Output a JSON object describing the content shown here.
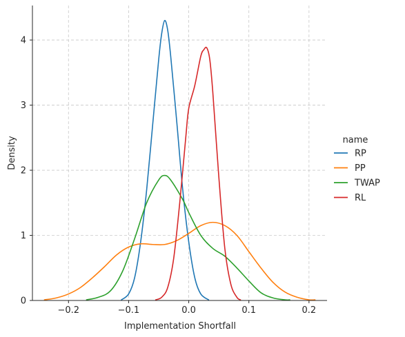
{
  "chart_data": {
    "type": "line",
    "xlabel": "Implementation Shortfall",
    "ylabel": "Density",
    "xlim": [
      -0.26,
      0.23
    ],
    "ylim": [
      0,
      4.53
    ],
    "xticks": [
      -0.2,
      -0.1,
      0.0,
      0.1,
      0.2
    ],
    "xtick_labels": [
      "−0.2",
      "−0.1",
      "0.0",
      "0.1",
      "0.2"
    ],
    "yticks": [
      0,
      1,
      2,
      3,
      4
    ],
    "ytick_labels": [
      "0",
      "1",
      "2",
      "3",
      "4"
    ],
    "grid": true,
    "legend": {
      "title": "name",
      "placement": "right"
    },
    "series": [
      {
        "name": "RP",
        "color": "#1f77b4",
        "x": [
          -0.112,
          -0.1,
          -0.09,
          -0.08,
          -0.07,
          -0.06,
          -0.05,
          -0.045,
          -0.04,
          -0.035,
          -0.03,
          -0.02,
          -0.01,
          0.0,
          0.01,
          0.02,
          0.033
        ],
        "y": [
          0.01,
          0.1,
          0.35,
          0.9,
          1.7,
          2.7,
          3.7,
          4.1,
          4.3,
          4.15,
          3.75,
          2.75,
          1.7,
          0.9,
          0.35,
          0.1,
          0.01
        ]
      },
      {
        "name": "PP",
        "color": "#ff7f0e",
        "x": [
          -0.24,
          -0.22,
          -0.2,
          -0.18,
          -0.16,
          -0.14,
          -0.12,
          -0.1,
          -0.08,
          -0.06,
          -0.04,
          -0.02,
          0.0,
          0.02,
          0.04,
          0.06,
          0.08,
          0.1,
          0.12,
          0.14,
          0.16,
          0.18,
          0.2,
          0.21
        ],
        "y": [
          0.01,
          0.04,
          0.1,
          0.2,
          0.35,
          0.52,
          0.7,
          0.82,
          0.87,
          0.86,
          0.86,
          0.92,
          1.03,
          1.15,
          1.2,
          1.15,
          1.0,
          0.75,
          0.5,
          0.28,
          0.13,
          0.05,
          0.01,
          0.01
        ]
      },
      {
        "name": "TWAP",
        "color": "#2ca02c",
        "x": [
          -0.17,
          -0.15,
          -0.13,
          -0.11,
          -0.09,
          -0.07,
          -0.05,
          -0.04,
          -0.03,
          -0.01,
          0.0,
          0.02,
          0.04,
          0.06,
          0.08,
          0.1,
          0.12,
          0.14,
          0.16,
          0.168
        ],
        "y": [
          0.01,
          0.05,
          0.15,
          0.45,
          0.95,
          1.5,
          1.85,
          1.92,
          1.85,
          1.55,
          1.35,
          1.0,
          0.8,
          0.68,
          0.5,
          0.3,
          0.12,
          0.04,
          0.01,
          0.01
        ]
      },
      {
        "name": "RL",
        "color": "#d62728",
        "x": [
          -0.055,
          -0.045,
          -0.035,
          -0.025,
          -0.015,
          -0.005,
          0.0,
          0.01,
          0.02,
          0.025,
          0.03,
          0.035,
          0.04,
          0.05,
          0.06,
          0.07,
          0.08,
          0.086
        ],
        "y": [
          0.01,
          0.05,
          0.2,
          0.65,
          1.5,
          2.5,
          2.95,
          3.3,
          3.75,
          3.85,
          3.88,
          3.7,
          3.2,
          1.9,
          0.8,
          0.25,
          0.05,
          0.01
        ]
      }
    ]
  }
}
